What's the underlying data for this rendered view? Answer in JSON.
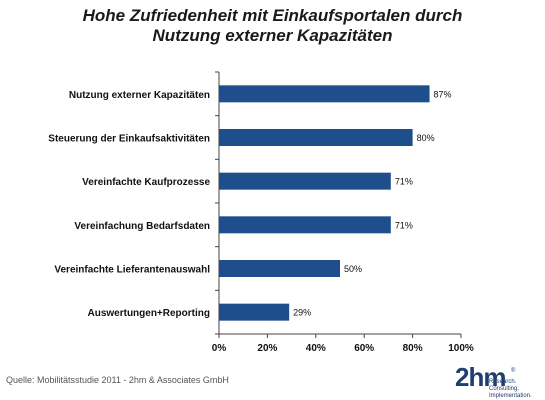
{
  "chart_data": {
    "type": "bar",
    "orientation": "horizontal",
    "title": [
      "Hohe Zufriedenheit mit Einkaufsportalen durch",
      "Nutzung externer Kapazitäten"
    ],
    "categories": [
      "Nutzung externer Kapazitäten",
      "Steuerung der Einkaufsaktivitäten",
      "Vereinfachte Kaufprozesse",
      "Vereinfachung Bedarfsdaten",
      "Vereinfachte Lieferantenauswahl",
      "Auswertungen+Reporting"
    ],
    "values": [
      87,
      80,
      71,
      71,
      50,
      29
    ],
    "value_labels": [
      "87%",
      "80%",
      "71%",
      "71%",
      "50%",
      "29%"
    ],
    "xlim": [
      0,
      100
    ],
    "xticks": [
      0,
      20,
      40,
      60,
      80,
      100
    ],
    "xtick_labels": [
      "0%",
      "20%",
      "40%",
      "60%",
      "80%",
      "100%"
    ],
    "bar_color": "#1f4e8c",
    "grid": false
  },
  "source": "Quelle: Mobilitätsstudie 2011  -  2hm  & Associates GmbH",
  "logo": {
    "mark": "2hm",
    "registered": "®",
    "tagline": [
      "Research. Consulting.",
      "Implementation."
    ]
  }
}
